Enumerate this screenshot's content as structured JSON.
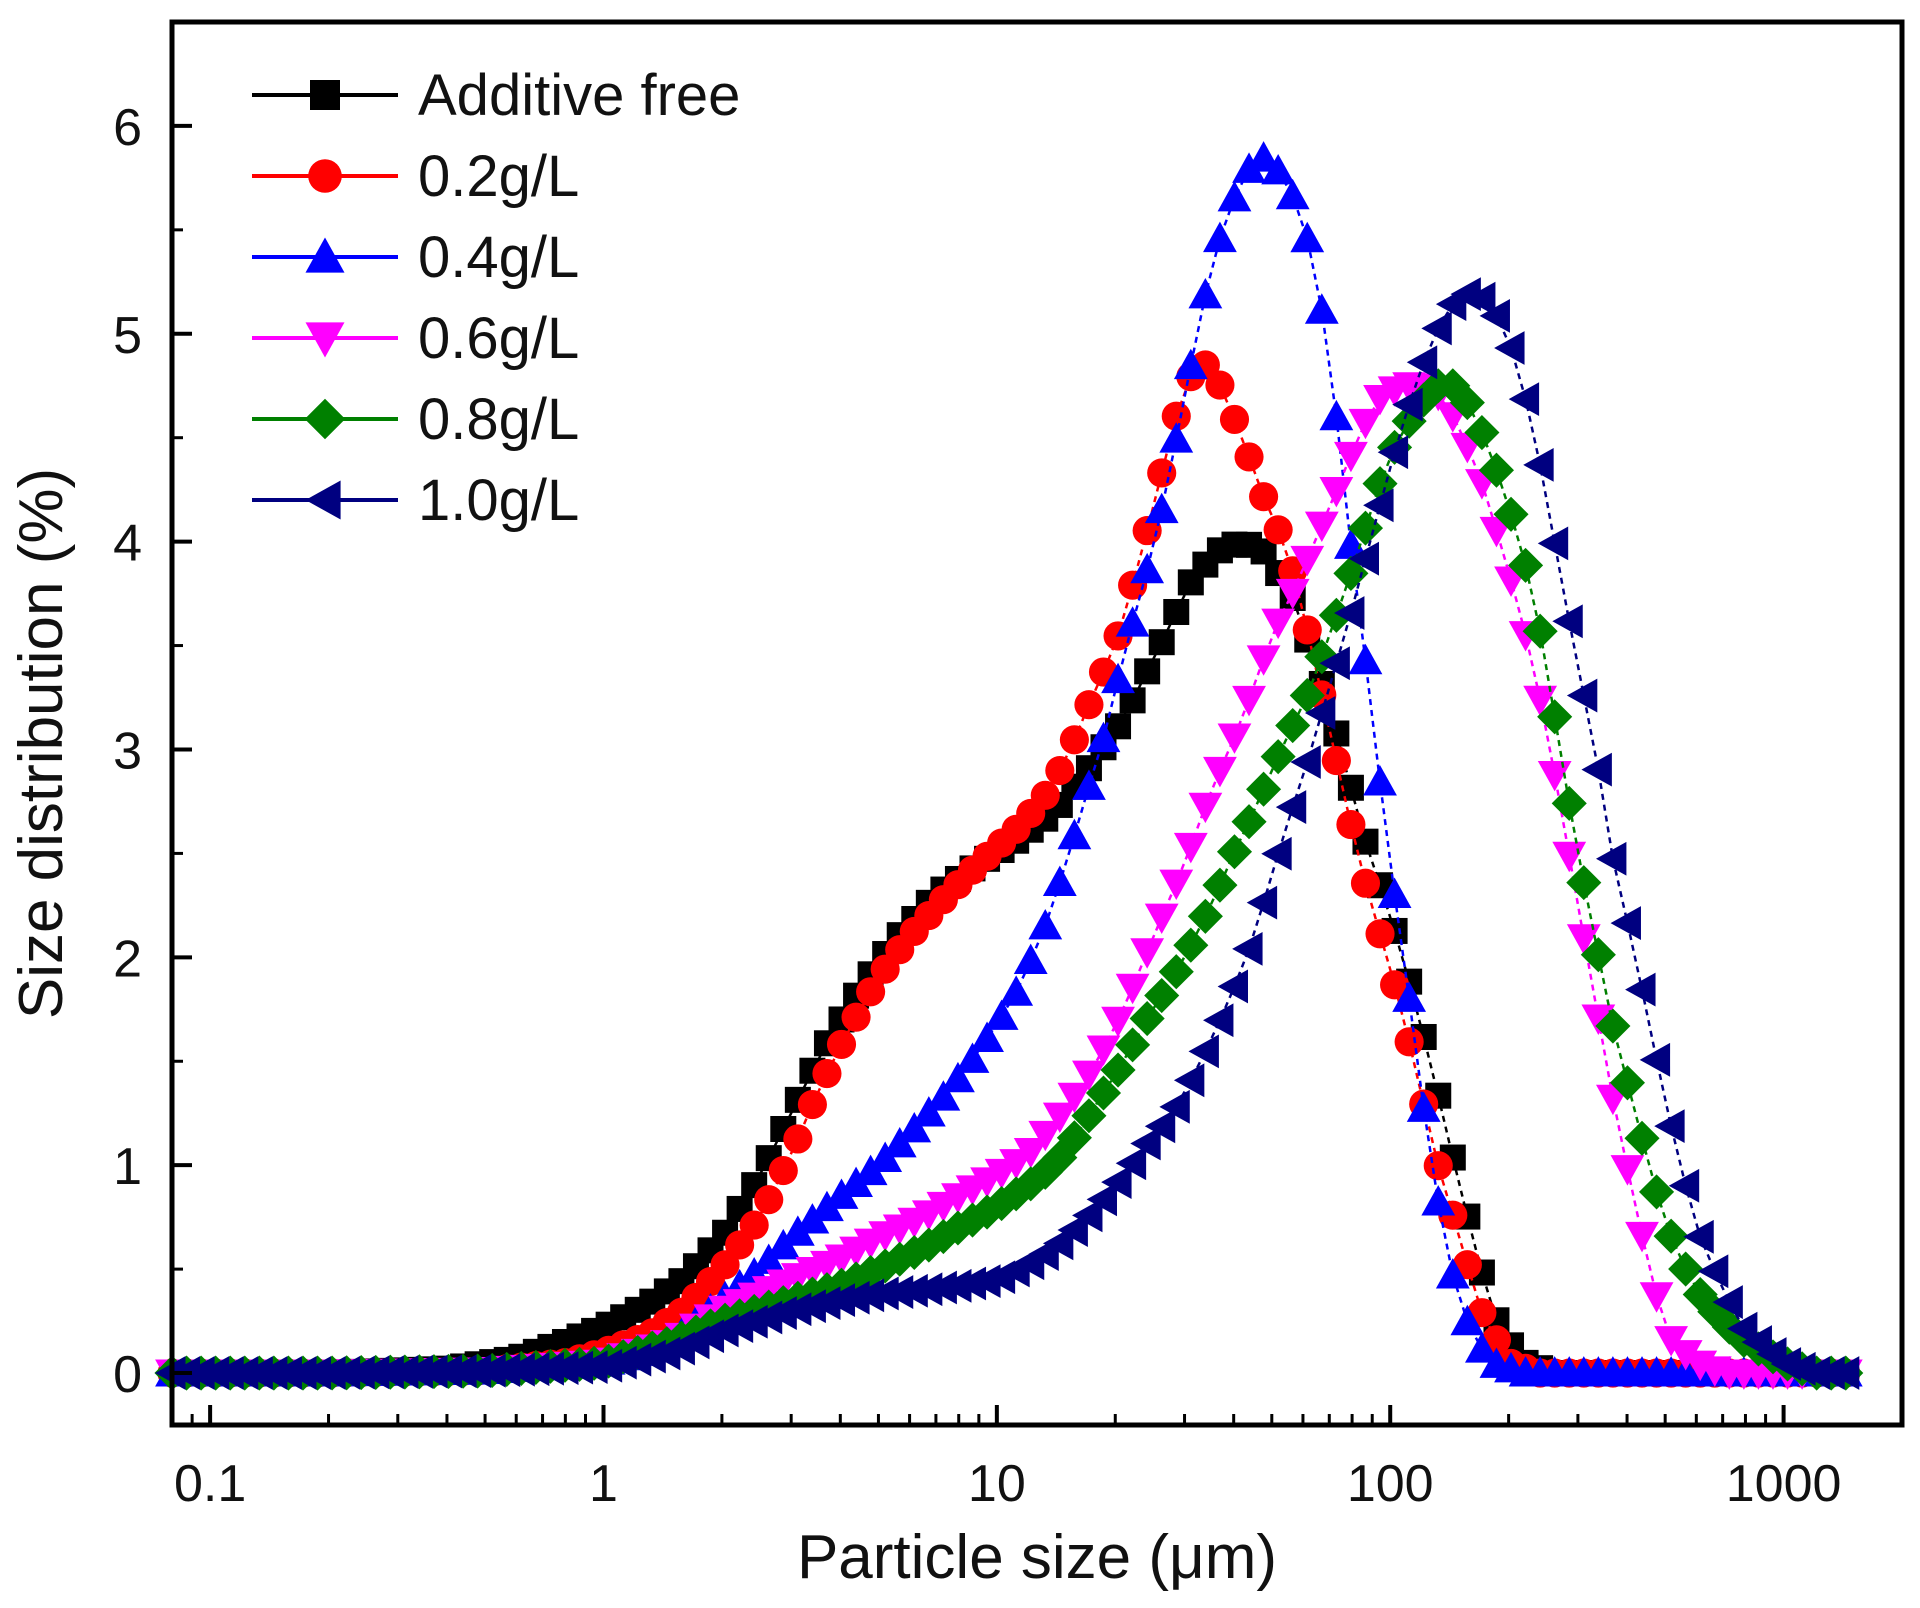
{
  "chart_data": {
    "type": "line",
    "title": "",
    "xlabel": "Particle size (μm)",
    "ylabel": "Size distribution (%)",
    "xscale": "log",
    "xlim": [
      0.08,
      2000
    ],
    "ylim": [
      -0.25,
      6.5
    ],
    "xticks": [
      0.1,
      1,
      10,
      100,
      1000
    ],
    "xtick_labels": [
      "0.1",
      "1",
      "10",
      "100",
      "1000"
    ],
    "yticks": [
      0,
      1,
      2,
      3,
      4,
      5,
      6
    ],
    "ytick_labels": [
      "0",
      "1",
      "2",
      "3",
      "4",
      "5",
      "6"
    ],
    "legend_position": "top-left",
    "series": [
      {
        "name": "Additive free",
        "color": "#000000",
        "marker": "square",
        "points": [
          [
            0.08,
            0
          ],
          [
            0.2,
            0
          ],
          [
            0.4,
            0.02
          ],
          [
            0.6,
            0.07
          ],
          [
            0.8,
            0.15
          ],
          [
            1,
            0.22
          ],
          [
            1.3,
            0.33
          ],
          [
            1.6,
            0.45
          ],
          [
            2,
            0.65
          ],
          [
            2.5,
            0.95
          ],
          [
            3,
            1.25
          ],
          [
            3.6,
            1.55
          ],
          [
            4.5,
            1.85
          ],
          [
            5.5,
            2.08
          ],
          [
            7,
            2.3
          ],
          [
            9,
            2.45
          ],
          [
            11,
            2.55
          ],
          [
            14,
            2.7
          ],
          [
            17,
            2.9
          ],
          [
            21,
            3.15
          ],
          [
            26,
            3.5
          ],
          [
            31,
            3.8
          ],
          [
            36,
            3.95
          ],
          [
            42,
            4.0
          ],
          [
            48,
            3.95
          ],
          [
            56,
            3.75
          ],
          [
            65,
            3.4
          ],
          [
            75,
            3.0
          ],
          [
            85,
            2.6
          ],
          [
            100,
            2.2
          ],
          [
            115,
            1.8
          ],
          [
            130,
            1.4
          ],
          [
            150,
            0.9
          ],
          [
            170,
            0.5
          ],
          [
            190,
            0.2
          ],
          [
            220,
            0.05
          ],
          [
            260,
            0
          ],
          [
            400,
            0
          ],
          [
            1000,
            0
          ],
          [
            1500,
            0
          ]
        ]
      },
      {
        "name": "0.2g/L",
        "color": "#ff0000",
        "marker": "circle",
        "points": [
          [
            0.08,
            0
          ],
          [
            0.2,
            0
          ],
          [
            0.5,
            0.01
          ],
          [
            0.8,
            0.05
          ],
          [
            1,
            0.1
          ],
          [
            1.3,
            0.18
          ],
          [
            1.6,
            0.3
          ],
          [
            2,
            0.5
          ],
          [
            2.5,
            0.75
          ],
          [
            3,
            1.05
          ],
          [
            3.5,
            1.35
          ],
          [
            4.2,
            1.65
          ],
          [
            5,
            1.9
          ],
          [
            6,
            2.1
          ],
          [
            7.5,
            2.3
          ],
          [
            9,
            2.45
          ],
          [
            11,
            2.6
          ],
          [
            13,
            2.75
          ],
          [
            15,
            2.95
          ],
          [
            17,
            3.2
          ],
          [
            20,
            3.5
          ],
          [
            23,
            3.9
          ],
          [
            26,
            4.3
          ],
          [
            29,
            4.65
          ],
          [
            32,
            4.85
          ],
          [
            35,
            4.85
          ],
          [
            38,
            4.7
          ],
          [
            42,
            4.5
          ],
          [
            48,
            4.2
          ],
          [
            55,
            3.95
          ],
          [
            62,
            3.55
          ],
          [
            70,
            3.1
          ],
          [
            78,
            2.7
          ],
          [
            88,
            2.3
          ],
          [
            100,
            1.95
          ],
          [
            115,
            1.5
          ],
          [
            130,
            1.05
          ],
          [
            150,
            0.65
          ],
          [
            170,
            0.3
          ],
          [
            200,
            0.05
          ],
          [
            240,
            0
          ],
          [
            400,
            0
          ],
          [
            1000,
            0
          ],
          [
            1500,
            0
          ]
        ]
      },
      {
        "name": "0.4g/L",
        "color": "#0000ff",
        "marker": "triangle-up",
        "points": [
          [
            0.08,
            0
          ],
          [
            0.2,
            0
          ],
          [
            0.5,
            0.01
          ],
          [
            1,
            0.05
          ],
          [
            1.5,
            0.15
          ],
          [
            2,
            0.35
          ],
          [
            2.5,
            0.5
          ],
          [
            3,
            0.65
          ],
          [
            4,
            0.85
          ],
          [
            5,
            1.0
          ],
          [
            6,
            1.15
          ],
          [
            7.5,
            1.35
          ],
          [
            9,
            1.55
          ],
          [
            11,
            1.8
          ],
          [
            13,
            2.1
          ],
          [
            15,
            2.45
          ],
          [
            17,
            2.8
          ],
          [
            19,
            3.1
          ],
          [
            21,
            3.45
          ],
          [
            24,
            3.85
          ],
          [
            27,
            4.25
          ],
          [
            30,
            4.7
          ],
          [
            34,
            5.2
          ],
          [
            38,
            5.55
          ],
          [
            43,
            5.78
          ],
          [
            48,
            5.85
          ],
          [
            54,
            5.75
          ],
          [
            60,
            5.55
          ],
          [
            66,
            5.2
          ],
          [
            72,
            4.7
          ],
          [
            78,
            4.1
          ],
          [
            85,
            3.55
          ],
          [
            92,
            3.0
          ],
          [
            100,
            2.45
          ],
          [
            110,
            1.9
          ],
          [
            120,
            1.35
          ],
          [
            130,
            0.9
          ],
          [
            145,
            0.45
          ],
          [
            160,
            0.2
          ],
          [
            180,
            0.05
          ],
          [
            220,
            0
          ],
          [
            400,
            0
          ],
          [
            1000,
            0
          ],
          [
            1500,
            0
          ]
        ]
      },
      {
        "name": "0.6g/L",
        "color": "#ff00ff",
        "marker": "triangle-down",
        "points": [
          [
            0.08,
            0
          ],
          [
            0.2,
            0
          ],
          [
            0.5,
            0.01
          ],
          [
            1,
            0.05
          ],
          [
            1.5,
            0.15
          ],
          [
            2,
            0.3
          ],
          [
            3,
            0.45
          ],
          [
            4,
            0.55
          ],
          [
            5,
            0.65
          ],
          [
            6.5,
            0.75
          ],
          [
            8,
            0.85
          ],
          [
            10,
            0.95
          ],
          [
            12,
            1.05
          ],
          [
            14,
            1.2
          ],
          [
            16,
            1.35
          ],
          [
            18,
            1.5
          ],
          [
            21,
            1.75
          ],
          [
            25,
            2.1
          ],
          [
            30,
            2.45
          ],
          [
            35,
            2.8
          ],
          [
            40,
            3.05
          ],
          [
            45,
            3.3
          ],
          [
            50,
            3.55
          ],
          [
            58,
            3.8
          ],
          [
            66,
            4.05
          ],
          [
            75,
            4.3
          ],
          [
            85,
            4.55
          ],
          [
            95,
            4.7
          ],
          [
            108,
            4.75
          ],
          [
            120,
            4.75
          ],
          [
            135,
            4.7
          ],
          [
            150,
            4.55
          ],
          [
            170,
            4.3
          ],
          [
            190,
            4.0
          ],
          [
            215,
            3.65
          ],
          [
            240,
            3.25
          ],
          [
            270,
            2.75
          ],
          [
            300,
            2.25
          ],
          [
            335,
            1.75
          ],
          [
            370,
            1.3
          ],
          [
            420,
            0.8
          ],
          [
            470,
            0.4
          ],
          [
            520,
            0.15
          ],
          [
            600,
            0.05
          ],
          [
            700,
            0
          ],
          [
            1000,
            0
          ],
          [
            1500,
            0
          ]
        ]
      },
      {
        "name": "0.8g/L",
        "color": "#008000",
        "marker": "diamond",
        "points": [
          [
            0.08,
            0
          ],
          [
            0.2,
            0
          ],
          [
            0.5,
            0.01
          ],
          [
            1,
            0.05
          ],
          [
            1.5,
            0.15
          ],
          [
            2,
            0.25
          ],
          [
            3,
            0.35
          ],
          [
            4,
            0.42
          ],
          [
            5,
            0.5
          ],
          [
            6.5,
            0.6
          ],
          [
            8,
            0.7
          ],
          [
            10,
            0.8
          ],
          [
            12,
            0.9
          ],
          [
            14,
            1.0
          ],
          [
            16,
            1.15
          ],
          [
            18,
            1.3
          ],
          [
            21,
            1.5
          ],
          [
            24,
            1.7
          ],
          [
            28,
            1.9
          ],
          [
            32,
            2.1
          ],
          [
            36,
            2.3
          ],
          [
            40,
            2.5
          ],
          [
            45,
            2.7
          ],
          [
            50,
            2.9
          ],
          [
            56,
            3.1
          ],
          [
            63,
            3.3
          ],
          [
            70,
            3.55
          ],
          [
            78,
            3.8
          ],
          [
            86,
            4.05
          ],
          [
            95,
            4.3
          ],
          [
            105,
            4.5
          ],
          [
            118,
            4.65
          ],
          [
            130,
            4.75
          ],
          [
            145,
            4.75
          ],
          [
            160,
            4.65
          ],
          [
            178,
            4.45
          ],
          [
            198,
            4.2
          ],
          [
            220,
            3.9
          ],
          [
            245,
            3.5
          ],
          [
            270,
            3.0
          ],
          [
            300,
            2.5
          ],
          [
            335,
            2.05
          ],
          [
            370,
            1.65
          ],
          [
            420,
            1.25
          ],
          [
            470,
            0.9
          ],
          [
            530,
            0.6
          ],
          [
            600,
            0.4
          ],
          [
            700,
            0.25
          ],
          [
            800,
            0.15
          ],
          [
            1000,
            0.05
          ],
          [
            1200,
            0
          ],
          [
            1500,
            0
          ]
        ]
      },
      {
        "name": "1.0g/L",
        "color": "#000080",
        "marker": "triangle-left",
        "points": [
          [
            0.08,
            0
          ],
          [
            0.2,
            0
          ],
          [
            0.5,
            0.01
          ],
          [
            1,
            0.03
          ],
          [
            1.5,
            0.1
          ],
          [
            2,
            0.2
          ],
          [
            3,
            0.3
          ],
          [
            4,
            0.35
          ],
          [
            5,
            0.38
          ],
          [
            6.5,
            0.4
          ],
          [
            8,
            0.42
          ],
          [
            10,
            0.45
          ],
          [
            12,
            0.52
          ],
          [
            14,
            0.6
          ],
          [
            16,
            0.7
          ],
          [
            18,
            0.8
          ],
          [
            21,
            0.95
          ],
          [
            24,
            1.1
          ],
          [
            28,
            1.25
          ],
          [
            32,
            1.45
          ],
          [
            36,
            1.65
          ],
          [
            40,
            1.85
          ],
          [
            45,
            2.1
          ],
          [
            50,
            2.4
          ],
          [
            56,
            2.7
          ],
          [
            63,
            3.0
          ],
          [
            70,
            3.3
          ],
          [
            78,
            3.6
          ],
          [
            86,
            3.9
          ],
          [
            95,
            4.2
          ],
          [
            105,
            4.5
          ],
          [
            118,
            4.8
          ],
          [
            130,
            5.0
          ],
          [
            145,
            5.15
          ],
          [
            160,
            5.2
          ],
          [
            178,
            5.15
          ],
          [
            198,
            5.0
          ],
          [
            220,
            4.7
          ],
          [
            245,
            4.3
          ],
          [
            270,
            3.85
          ],
          [
            300,
            3.4
          ],
          [
            335,
            2.95
          ],
          [
            370,
            2.45
          ],
          [
            420,
            2.0
          ],
          [
            470,
            1.55
          ],
          [
            530,
            1.1
          ],
          [
            600,
            0.7
          ],
          [
            700,
            0.4
          ],
          [
            800,
            0.2
          ],
          [
            1000,
            0.05
          ],
          [
            1200,
            0
          ],
          [
            1500,
            0
          ]
        ]
      }
    ]
  }
}
